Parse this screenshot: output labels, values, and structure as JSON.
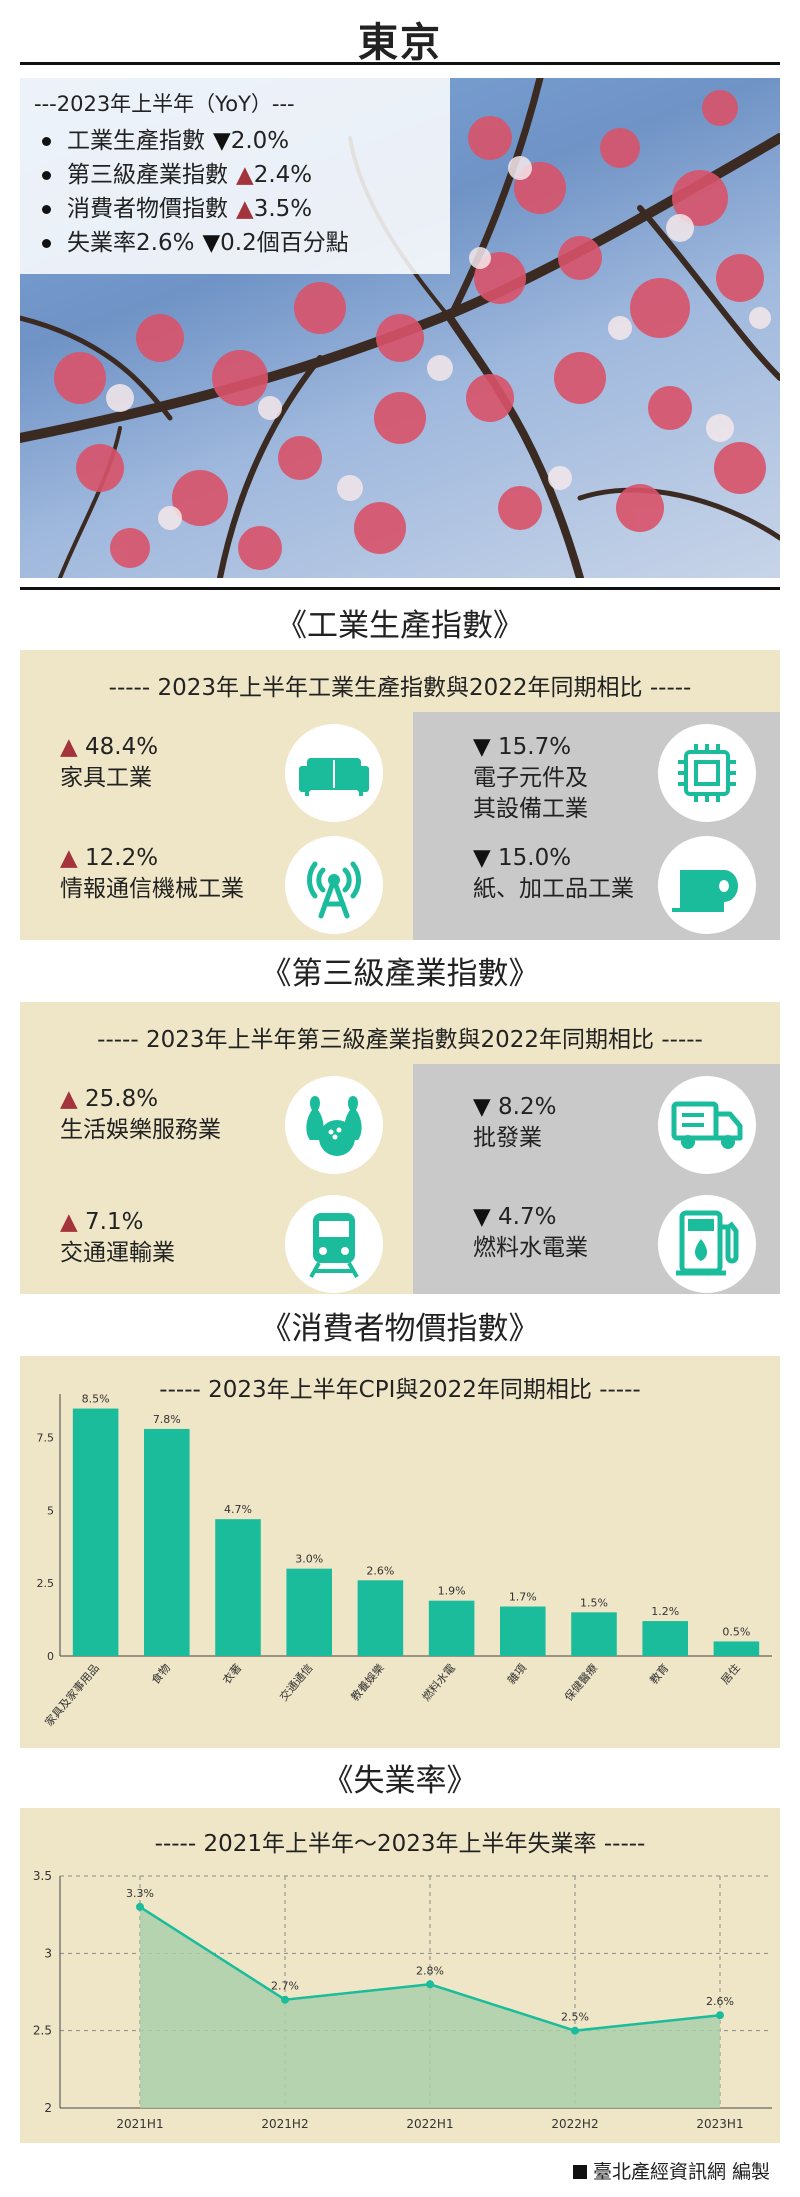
{
  "page": {
    "title": "東京"
  },
  "summary": {
    "heading": "---2023年上半年（YoY）---",
    "items": [
      {
        "label": "工業生產指數",
        "arrow": "▼",
        "value": "2.0%",
        "dir": "down"
      },
      {
        "label": "第三級產業指數",
        "arrow": "▲",
        "value": "2.4%",
        "dir": "up"
      },
      {
        "label": "消費者物價指數",
        "arrow": "▲",
        "value": "3.5%",
        "dir": "up"
      },
      {
        "label": "失業率2.6%",
        "arrow": "▼",
        "value": "0.2個百分點",
        "dir": "down"
      }
    ]
  },
  "industrial": {
    "section_title": "《工業生產指數》",
    "panel_title": "----- 2023年上半年工業生產指數與2022年同期相比 -----",
    "items": [
      {
        "arrow": "▲",
        "value": "48.4%",
        "label": "家具工業",
        "icon": "sofa-icon"
      },
      {
        "arrow": "▲",
        "value": "12.2%",
        "label": "情報通信機械工業",
        "icon": "antenna-icon"
      },
      {
        "arrow": "▼",
        "value": "15.7%",
        "label": "電子元件及\n其設備工業",
        "label_l1": "電子元件及",
        "label_l2": "其設備工業",
        "icon": "chip-icon"
      },
      {
        "arrow": "▼",
        "value": "15.0%",
        "label": "紙、加工品工業",
        "icon": "paper-roll-icon"
      }
    ]
  },
  "tertiary": {
    "section_title": "《第三級產業指數》",
    "panel_title": "----- 2023年上半年第三級產業指數與2022年同期相比 -----",
    "items": [
      {
        "arrow": "▲",
        "value": "25.8%",
        "label": "生活娛樂服務業",
        "icon": "bowling-icon"
      },
      {
        "arrow": "▲",
        "value": "7.1%",
        "label": "交通運輸業",
        "icon": "train-icon"
      },
      {
        "arrow": "▼",
        "value": "8.2%",
        "label": "批發業",
        "icon": "truck-icon"
      },
      {
        "arrow": "▼",
        "value": "4.7%",
        "label": "燃料水電業",
        "icon": "fuel-pump-icon"
      }
    ]
  },
  "cpi": {
    "section_title": "《消費者物價指數》",
    "panel_title": "----- 2023年上半年CPI與2022年同期相比 -----"
  },
  "unemployment": {
    "section_title": "《失業率》",
    "panel_title": "----- 2021年上半年～2023年上半年失業率 -----"
  },
  "credit": "臺北產經資訊網 編製",
  "colors": {
    "accent": "#1abc9c",
    "panel": "#efe6c7",
    "grey": "#c9c9c9",
    "up": "#a4343c",
    "area": "#a9cfa9"
  },
  "chart_data": [
    {
      "type": "bar",
      "categories": [
        "家具及家事用品",
        "食物",
        "衣著",
        "交通通信",
        "教養娛樂",
        "燃料水電",
        "雜項",
        "保健醫療",
        "教育",
        "居住"
      ],
      "values": [
        8.5,
        7.8,
        4.7,
        3.0,
        2.6,
        1.9,
        1.7,
        1.5,
        1.2,
        0.5
      ],
      "value_labels": [
        "8.5%",
        "7.8%",
        "4.7%",
        "3.0%",
        "2.6%",
        "1.9%",
        "1.7%",
        "1.5%",
        "1.2%",
        "0.5%"
      ],
      "title": "2023年上半年CPI與2022年同期相比",
      "ylim": [
        0,
        9
      ],
      "yticks": [
        0,
        2.5,
        5,
        7.5
      ],
      "ytick_labels": [
        "0",
        "2.5",
        "5",
        "7.5"
      ],
      "color": "#1abc9c",
      "grid": false
    },
    {
      "type": "area",
      "categories": [
        "2021H1",
        "2021H2",
        "2022H1",
        "2022H2",
        "2023H1"
      ],
      "values": [
        3.3,
        2.7,
        2.8,
        2.5,
        2.6
      ],
      "value_labels": [
        "3.3%",
        "2.7%",
        "2.8%",
        "2.5%",
        "2.6%"
      ],
      "title": "2021年上半年～2023年上半年失業率",
      "ylim": [
        2,
        3.5
      ],
      "yticks": [
        2,
        2.5,
        3,
        3.5
      ],
      "ytick_labels": [
        "2",
        "2.5",
        "3",
        "3.5"
      ],
      "line_color": "#1abc9c",
      "fill_color": "#a9cfa9",
      "grid": true
    }
  ]
}
